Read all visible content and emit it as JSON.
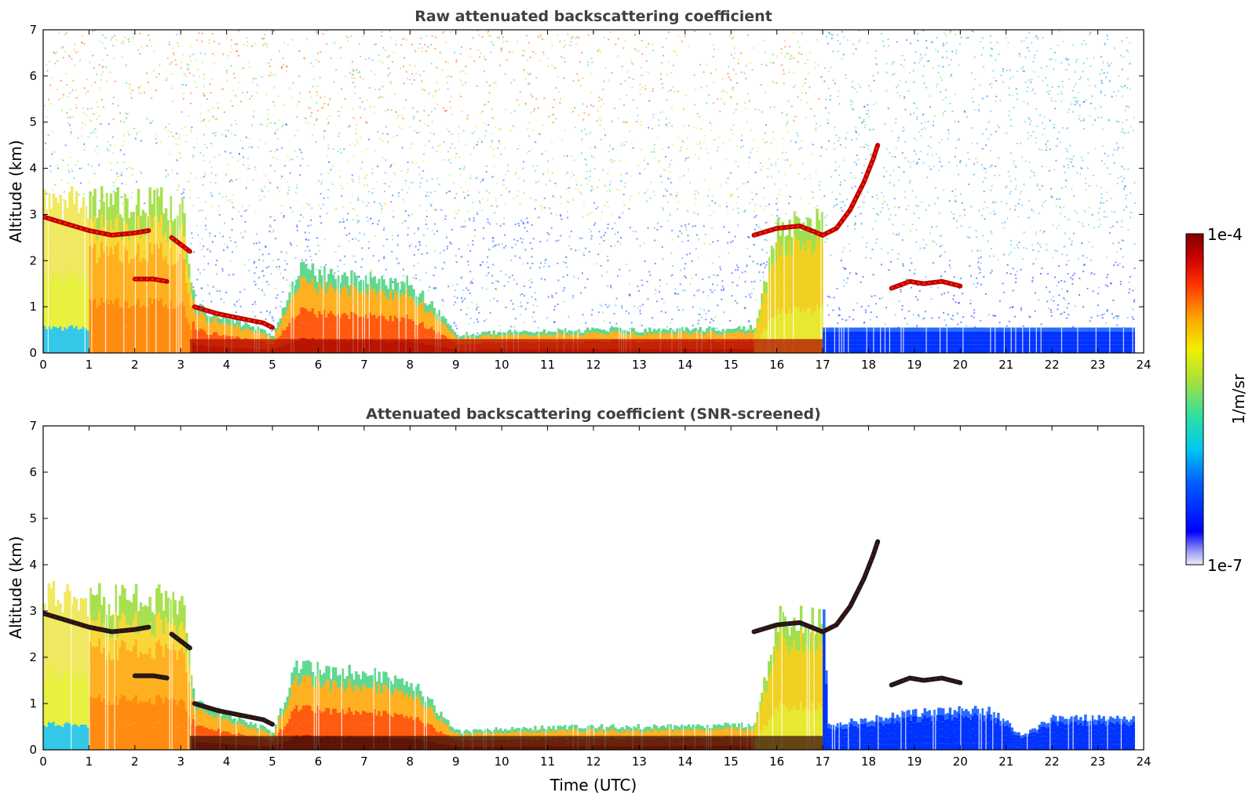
{
  "chart_data": [
    {
      "type": "heatmap",
      "title": "Raw attenuated backscattering coefficient",
      "xlabel": "",
      "ylabel": "Altitude (km)",
      "xlim": [
        0,
        24
      ],
      "ylim": [
        0,
        7
      ],
      "x_ticks": [
        0,
        1,
        2,
        3,
        4,
        5,
        6,
        7,
        8,
        9,
        10,
        11,
        12,
        13,
        14,
        15,
        16,
        17,
        18,
        19,
        20,
        21,
        22,
        23,
        24
      ],
      "y_ticks": [
        0,
        1,
        2,
        3,
        4,
        5,
        6,
        7
      ],
      "x_data_end": 23.8,
      "cloud_layers": [
        {
          "name": "",
          "x": [
            0,
            0.5,
            1.0,
            1.5,
            2.0,
            2.3
          ],
          "y": [
            2.95,
            2.8,
            2.65,
            2.55,
            2.6,
            2.65
          ],
          "value": "1e-4"
        },
        {
          "name": "",
          "x": [
            2.0,
            2.4,
            2.7
          ],
          "y": [
            1.6,
            1.6,
            1.55
          ],
          "value": "1e-4"
        },
        {
          "name": "",
          "x": [
            2.8,
            3.0,
            3.2
          ],
          "y": [
            2.5,
            2.35,
            2.2
          ],
          "value": "1e-4"
        },
        {
          "name": "",
          "x": [
            3.3,
            3.8,
            4.3,
            4.8,
            5.0
          ],
          "y": [
            1.0,
            0.85,
            0.75,
            0.65,
            0.55
          ],
          "value": "1e-4"
        },
        {
          "name": "",
          "x": [
            15.5,
            16.0,
            16.5,
            17.0,
            17.3,
            17.6,
            17.9,
            18.1,
            18.2
          ],
          "y": [
            2.55,
            2.7,
            2.75,
            2.55,
            2.7,
            3.1,
            3.7,
            4.2,
            4.5
          ],
          "value": "1e-4"
        },
        {
          "name": "",
          "x": [
            18.5,
            18.9,
            19.2,
            19.6,
            20.0
          ],
          "y": [
            1.4,
            1.55,
            1.5,
            1.55,
            1.45
          ],
          "value": "1e-4"
        }
      ],
      "boundary_layer_top": {
        "x": [
          0,
          3,
          3.3,
          5,
          5.5,
          7,
          8,
          9,
          10,
          12,
          14,
          15.5,
          16,
          17,
          17.1,
          20,
          21,
          22,
          23.8
        ],
        "y": [
          3.3,
          3.2,
          1.0,
          0.4,
          1.8,
          1.6,
          1.5,
          0.4,
          0.45,
          0.5,
          0.5,
          0.55,
          2.8,
          2.8,
          0.55,
          0.55,
          0.55,
          0.55,
          0.55
        ]
      }
    },
    {
      "type": "heatmap",
      "title": "Attenuated backscattering coefficient (SNR-screened)",
      "xlabel": "Time (UTC)",
      "ylabel": "Altitude (km)",
      "xlim": [
        0,
        24
      ],
      "ylim": [
        0,
        7
      ],
      "x_ticks": [
        0,
        1,
        2,
        3,
        4,
        5,
        6,
        7,
        8,
        9,
        10,
        11,
        12,
        13,
        14,
        15,
        16,
        17,
        18,
        19,
        20,
        21,
        22,
        23,
        24
      ],
      "y_ticks": [
        0,
        1,
        2,
        3,
        4,
        5,
        6,
        7
      ],
      "x_data_end": 23.8,
      "screened_top": {
        "x": [
          0,
          3,
          3.3,
          5,
          5.5,
          7,
          8,
          9,
          10,
          12,
          14,
          15.5,
          16,
          17,
          17.1,
          19,
          20,
          20.6,
          21,
          21.3,
          21.6,
          22,
          23,
          23.8
        ],
        "y": [
          3.3,
          3.2,
          1.0,
          0.4,
          1.8,
          1.6,
          1.5,
          0.4,
          0.45,
          0.5,
          0.5,
          0.55,
          2.8,
          2.8,
          0.55,
          0.8,
          0.85,
          0.85,
          0.6,
          0.3,
          0.45,
          0.7,
          0.7,
          0.65
        ]
      }
    }
  ],
  "colorbar": {
    "label": "1/m/sr",
    "max_label": "1e-4",
    "min_label": "1e-7",
    "colors": [
      "#e6e6f8",
      "#9090f0",
      "#0000ff",
      "#0050ff",
      "#00a0ff",
      "#00e0e0",
      "#40e080",
      "#a0e040",
      "#f0f000",
      "#ffc000",
      "#ff7000",
      "#ff2000",
      "#c00000",
      "#800000"
    ]
  }
}
